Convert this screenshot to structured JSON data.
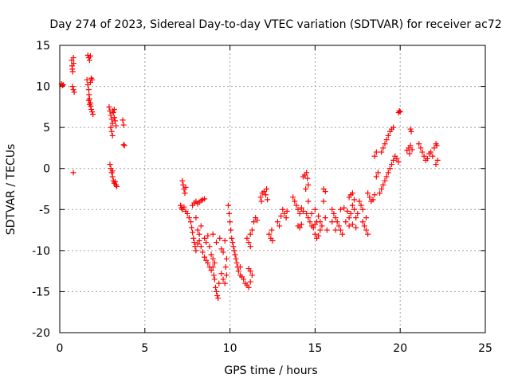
{
  "chart_data": {
    "type": "scatter",
    "title": "Day 274 of 2023, Sidereal Day-to-day VTEC variation (SDTVAR) for receiver ac72",
    "xlabel": "GPS time / hours",
    "ylabel": "SDTVAR / TECUs",
    "xlim": [
      0,
      25
    ],
    "ylim": [
      -20,
      15
    ],
    "xticks": [
      "0",
      "5",
      "10",
      "15",
      "20",
      "25"
    ],
    "yticks": [
      "-20",
      "-15",
      "-10",
      "-5",
      "0",
      "5",
      "10",
      "15"
    ],
    "grid": true,
    "marker": "plus",
    "color": "#ff0000",
    "series": [
      {
        "name": "SDTVAR",
        "points": [
          [
            0.1,
            10.3
          ],
          [
            0.15,
            10.1
          ],
          [
            0.2,
            10.2
          ],
          [
            0.7,
            13.2
          ],
          [
            0.72,
            12.5
          ],
          [
            0.74,
            12.1
          ],
          [
            0.76,
            11.8
          ],
          [
            0.8,
            13.5
          ],
          [
            0.82,
            12.8
          ],
          [
            0.75,
            10.0
          ],
          [
            0.8,
            9.6
          ],
          [
            0.85,
            9.3
          ],
          [
            0.8,
            -0.5
          ],
          [
            1.65,
            13.8
          ],
          [
            1.7,
            13.5
          ],
          [
            1.75,
            13.2
          ],
          [
            1.8,
            13.7
          ],
          [
            1.6,
            10.8
          ],
          [
            1.65,
            10.2
          ],
          [
            1.7,
            9.6
          ],
          [
            1.72,
            9.0
          ],
          [
            1.75,
            8.5
          ],
          [
            1.8,
            8.0
          ],
          [
            1.82,
            7.6
          ],
          [
            1.85,
            7.2
          ],
          [
            1.9,
            6.9
          ],
          [
            1.95,
            6.6
          ],
          [
            1.7,
            8.3
          ],
          [
            1.8,
            10.5
          ],
          [
            1.85,
            11.0
          ],
          [
            1.9,
            10.8
          ],
          [
            1.75,
            7.8
          ],
          [
            2.9,
            7.5
          ],
          [
            2.95,
            7.0
          ],
          [
            3.0,
            6.5
          ],
          [
            3.05,
            6.0
          ],
          [
            3.1,
            5.5
          ],
          [
            3.0,
            5.0
          ],
          [
            3.05,
            4.5
          ],
          [
            3.1,
            4.0
          ],
          [
            3.15,
            6.8
          ],
          [
            3.2,
            6.2
          ],
          [
            3.25,
            5.8
          ],
          [
            3.3,
            5.2
          ],
          [
            3.2,
            7.2
          ],
          [
            3.1,
            7.0
          ],
          [
            3.7,
            5.9
          ],
          [
            3.75,
            5.3
          ],
          [
            3.8,
            2.8
          ],
          [
            3.75,
            2.9
          ],
          [
            2.95,
            0.5
          ],
          [
            3.0,
            0.0
          ],
          [
            3.05,
            -0.5
          ],
          [
            3.1,
            -1.0
          ],
          [
            3.15,
            -1.5
          ],
          [
            3.2,
            -1.8
          ],
          [
            3.3,
            -2.0
          ],
          [
            3.35,
            -2.2
          ],
          [
            3.1,
            -0.3
          ],
          [
            3.25,
            -1.6
          ],
          [
            7.2,
            -1.5
          ],
          [
            7.25,
            -2.0
          ],
          [
            7.3,
            -2.5
          ],
          [
            7.35,
            -3.0
          ],
          [
            7.4,
            -2.3
          ],
          [
            7.1,
            -4.5
          ],
          [
            7.15,
            -4.8
          ],
          [
            7.2,
            -5.0
          ],
          [
            7.3,
            -4.7
          ],
          [
            7.4,
            -5.2
          ],
          [
            7.5,
            -5.5
          ],
          [
            7.6,
            -6.0
          ],
          [
            7.7,
            -6.5
          ],
          [
            7.75,
            -7.2
          ],
          [
            7.8,
            -7.8
          ],
          [
            7.85,
            -8.5
          ],
          [
            7.9,
            -9.0
          ],
          [
            7.95,
            -9.5
          ],
          [
            8.0,
            -10.0
          ],
          [
            8.1,
            -9.2
          ],
          [
            8.2,
            -8.8
          ],
          [
            8.3,
            -9.5
          ],
          [
            8.4,
            -10.2
          ],
          [
            8.5,
            -10.8
          ],
          [
            8.6,
            -11.2
          ],
          [
            8.7,
            -11.5
          ],
          [
            8.8,
            -12.0
          ],
          [
            8.9,
            -12.4
          ],
          [
            9.0,
            -12.0
          ],
          [
            9.1,
            -11.5
          ],
          [
            7.8,
            -4.5
          ],
          [
            7.9,
            -4.2
          ],
          [
            8.0,
            -4.0
          ],
          [
            8.1,
            -4.3
          ],
          [
            8.2,
            -4.1
          ],
          [
            8.3,
            -3.9
          ],
          [
            8.4,
            -3.8
          ],
          [
            8.5,
            -3.7
          ],
          [
            8.0,
            -6.0
          ],
          [
            8.1,
            -7.5
          ],
          [
            8.2,
            -8.0
          ],
          [
            8.3,
            -7.0
          ],
          [
            8.5,
            -8.5
          ],
          [
            8.6,
            -9.0
          ],
          [
            8.7,
            -8.2
          ],
          [
            8.8,
            -9.5
          ],
          [
            8.9,
            -10.5
          ],
          [
            9.0,
            -11.0
          ],
          [
            9.05,
            -13.0
          ],
          [
            9.1,
            -13.5
          ],
          [
            9.15,
            -14.5
          ],
          [
            9.2,
            -15.0
          ],
          [
            9.25,
            -15.5
          ],
          [
            9.3,
            -15.8
          ],
          [
            9.35,
            -14.0
          ],
          [
            9.5,
            -12.8
          ],
          [
            9.6,
            -13.5
          ],
          [
            9.7,
            -14.0
          ],
          [
            9.75,
            -12.0
          ],
          [
            9.8,
            -13.0
          ],
          [
            9.9,
            -4.5
          ],
          [
            9.95,
            -5.5
          ],
          [
            10.0,
            -6.5
          ],
          [
            10.05,
            -7.5
          ],
          [
            10.1,
            -8.5
          ],
          [
            10.15,
            -9.0
          ],
          [
            10.2,
            -9.5
          ],
          [
            10.25,
            -10.0
          ],
          [
            10.3,
            -10.5
          ],
          [
            10.35,
            -11.0
          ],
          [
            10.4,
            -11.5
          ],
          [
            10.45,
            -12.0
          ],
          [
            10.5,
            -12.5
          ],
          [
            10.6,
            -13.0
          ],
          [
            10.7,
            -13.2
          ],
          [
            10.8,
            -13.5
          ],
          [
            10.9,
            -14.0
          ],
          [
            11.0,
            -14.2
          ],
          [
            11.1,
            -14.5
          ],
          [
            11.2,
            -13.8
          ],
          [
            11.3,
            -13.0
          ],
          [
            11.2,
            -12.5
          ],
          [
            11.1,
            -12.2
          ],
          [
            10.6,
            -12.0
          ],
          [
            9.0,
            -8.0
          ],
          [
            9.2,
            -9.0
          ],
          [
            9.4,
            -8.5
          ],
          [
            9.5,
            -9.8
          ],
          [
            9.6,
            -10.2
          ],
          [
            9.7,
            -8.8
          ],
          [
            9.8,
            -11.0
          ],
          [
            11.0,
            -8.5
          ],
          [
            11.1,
            -9.0
          ],
          [
            11.2,
            -8.0
          ],
          [
            11.3,
            -7.5
          ],
          [
            11.4,
            -6.5
          ],
          [
            11.5,
            -6.0
          ],
          [
            11.6,
            -6.3
          ],
          [
            11.2,
            -9.5
          ],
          [
            11.8,
            -3.5
          ],
          [
            11.9,
            -3.0
          ],
          [
            12.0,
            -2.8
          ],
          [
            12.1,
            -3.2
          ],
          [
            12.2,
            -3.8
          ],
          [
            12.15,
            -2.5
          ],
          [
            11.85,
            -4.0
          ],
          [
            12.3,
            -8.0
          ],
          [
            12.4,
            -8.5
          ],
          [
            12.5,
            -8.8
          ],
          [
            12.45,
            -7.5
          ],
          [
            12.8,
            -6.5
          ],
          [
            12.9,
            -7.0
          ],
          [
            13.0,
            -5.8
          ],
          [
            13.1,
            -5.0
          ],
          [
            13.2,
            -5.5
          ],
          [
            13.3,
            -6.0
          ],
          [
            13.35,
            -5.2
          ],
          [
            13.7,
            -3.5
          ],
          [
            13.8,
            -4.0
          ],
          [
            13.9,
            -4.5
          ],
          [
            14.0,
            -5.0
          ],
          [
            14.1,
            -5.5
          ],
          [
            14.2,
            -4.8
          ],
          [
            14.3,
            -5.2
          ],
          [
            14.0,
            -7.0
          ],
          [
            14.1,
            -7.2
          ],
          [
            14.2,
            -6.8
          ],
          [
            14.3,
            -1.0
          ],
          [
            14.4,
            -0.8
          ],
          [
            14.5,
            -0.5
          ],
          [
            14.55,
            -1.2
          ],
          [
            14.6,
            -2.0
          ],
          [
            14.45,
            -2.5
          ],
          [
            14.5,
            -5.5
          ],
          [
            14.6,
            -6.0
          ],
          [
            14.7,
            -6.5
          ],
          [
            14.8,
            -7.0
          ],
          [
            14.9,
            -7.2
          ],
          [
            15.0,
            -6.8
          ],
          [
            15.1,
            -6.5
          ],
          [
            14.6,
            -4.0
          ],
          [
            14.8,
            -5.5
          ],
          [
            15.0,
            -5.0
          ],
          [
            15.2,
            -5.8
          ],
          [
            15.3,
            -6.5
          ],
          [
            15.4,
            -7.0
          ],
          [
            15.0,
            -8.0
          ],
          [
            15.1,
            -8.5
          ],
          [
            15.2,
            -8.2
          ],
          [
            15.3,
            -7.5
          ],
          [
            15.5,
            -2.5
          ],
          [
            15.6,
            -2.8
          ],
          [
            15.5,
            -4.0
          ],
          [
            15.6,
            -6.0
          ],
          [
            15.7,
            -7.5
          ],
          [
            16.0,
            -5.0
          ],
          [
            16.1,
            -5.5
          ],
          [
            16.2,
            -6.0
          ],
          [
            16.3,
            -6.5
          ],
          [
            16.4,
            -7.0
          ],
          [
            16.5,
            -7.5
          ],
          [
            16.6,
            -8.0
          ],
          [
            16.2,
            -7.5
          ],
          [
            16.0,
            -6.5
          ],
          [
            16.5,
            -5.0
          ],
          [
            16.7,
            -4.8
          ],
          [
            16.9,
            -5.2
          ],
          [
            17.0,
            -6.0
          ],
          [
            17.1,
            -5.5
          ],
          [
            17.2,
            -4.5
          ],
          [
            17.3,
            -5.0
          ],
          [
            17.4,
            -6.0
          ],
          [
            17.5,
            -5.5
          ],
          [
            17.6,
            -4.0
          ],
          [
            17.7,
            -4.5
          ],
          [
            17.8,
            -5.0
          ],
          [
            16.8,
            -6.5
          ],
          [
            17.0,
            -7.0
          ],
          [
            17.2,
            -6.8
          ],
          [
            17.4,
            -7.2
          ],
          [
            17.0,
            -3.5
          ],
          [
            17.1,
            -3.2
          ],
          [
            17.2,
            -3.0
          ],
          [
            17.3,
            -3.8
          ],
          [
            17.8,
            -6.5
          ],
          [
            17.9,
            -7.0
          ],
          [
            18.0,
            -7.5
          ],
          [
            18.1,
            -8.0
          ],
          [
            18.0,
            -6.0
          ],
          [
            18.1,
            -3.0
          ],
          [
            18.2,
            -3.5
          ],
          [
            18.3,
            -4.0
          ],
          [
            18.4,
            -3.8
          ],
          [
            18.5,
            -3.2
          ],
          [
            18.6,
            -1.0
          ],
          [
            18.7,
            -0.5
          ],
          [
            18.8,
            -3.0
          ],
          [
            18.9,
            -2.5
          ],
          [
            19.0,
            -2.0
          ],
          [
            19.1,
            -1.5
          ],
          [
            19.2,
            -1.0
          ],
          [
            19.3,
            -0.5
          ],
          [
            19.4,
            0.0
          ],
          [
            19.5,
            0.5
          ],
          [
            19.6,
            1.0
          ],
          [
            19.7,
            1.5
          ],
          [
            19.8,
            1.2
          ],
          [
            19.9,
            0.8
          ],
          [
            18.9,
            2.0
          ],
          [
            19.0,
            2.5
          ],
          [
            19.1,
            3.0
          ],
          [
            19.2,
            3.5
          ],
          [
            19.3,
            4.0
          ],
          [
            19.4,
            4.5
          ],
          [
            19.5,
            4.8
          ],
          [
            19.6,
            5.0
          ],
          [
            18.5,
            1.5
          ],
          [
            18.6,
            2.0
          ],
          [
            19.9,
            6.8
          ],
          [
            19.95,
            7.0
          ],
          [
            20.0,
            6.9
          ],
          [
            20.6,
            4.8
          ],
          [
            20.65,
            4.5
          ],
          [
            20.4,
            2.2
          ],
          [
            20.5,
            2.5
          ],
          [
            20.6,
            2.8
          ],
          [
            20.7,
            2.3
          ],
          [
            20.55,
            1.8
          ],
          [
            21.1,
            3.0
          ],
          [
            21.2,
            2.5
          ],
          [
            21.3,
            2.0
          ],
          [
            21.4,
            1.5
          ],
          [
            21.5,
            1.0
          ],
          [
            21.6,
            1.2
          ],
          [
            21.7,
            1.8
          ],
          [
            21.8,
            2.0
          ],
          [
            21.9,
            1.5
          ],
          [
            22.0,
            2.5
          ],
          [
            22.1,
            3.0
          ],
          [
            22.15,
            2.8
          ],
          [
            22.2,
            1.0
          ],
          [
            22.1,
            0.5
          ]
        ]
      }
    ]
  }
}
